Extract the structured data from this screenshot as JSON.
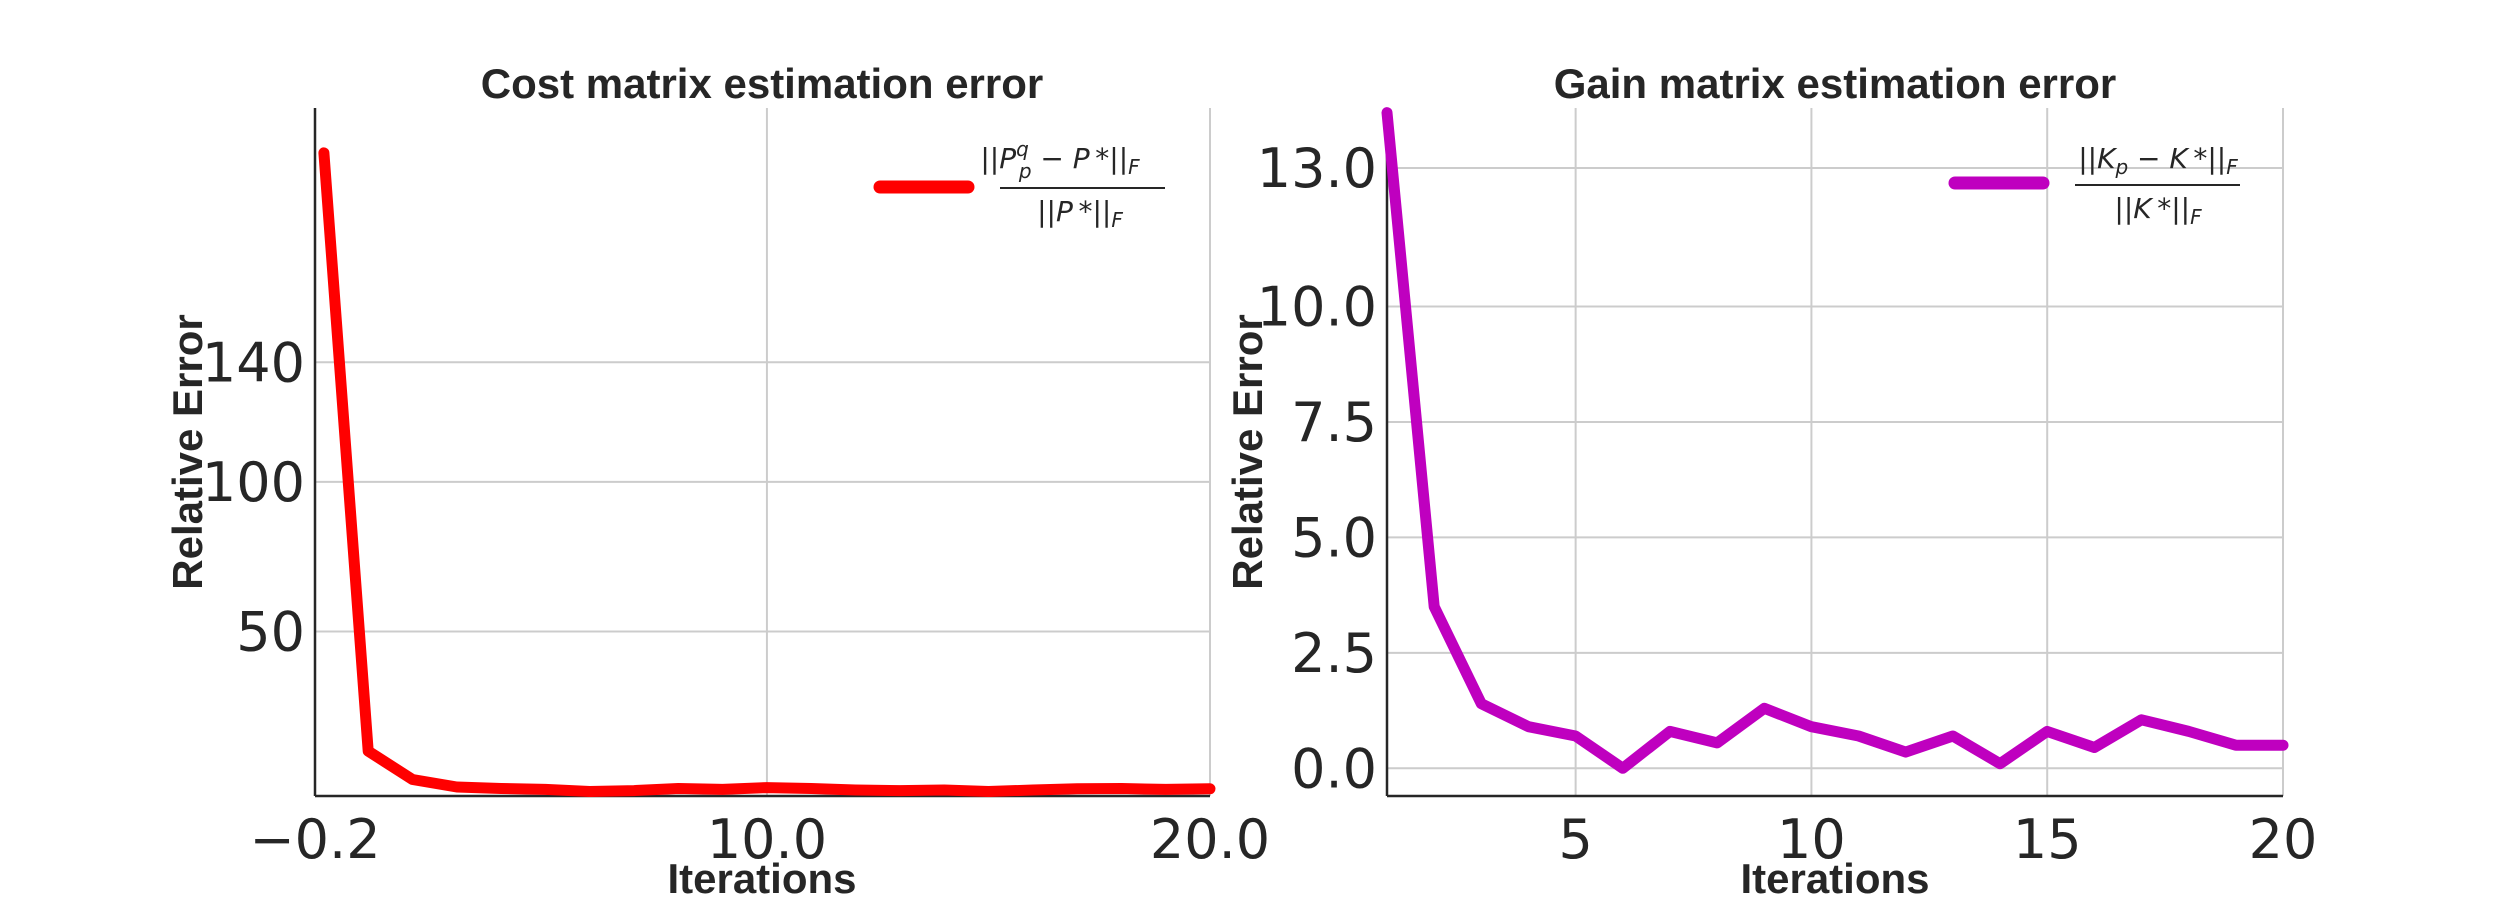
{
  "chart_data": [
    {
      "type": "line",
      "title": "Cost matrix estimation error",
      "xlabel": "Iterations",
      "ylabel": "Relative Error",
      "xlim": [
        -0.2,
        20.0
      ],
      "ylim": [
        -5,
        225
      ],
      "xticks": [
        -0.2,
        10.0,
        20.0
      ],
      "xtick_labels": [
        "−0.2",
        "10.0",
        "20.0"
      ],
      "yticks": [
        50,
        100,
        140
      ],
      "ytick_labels": [
        "50",
        "100",
        "140"
      ],
      "grid": true,
      "legend_position": "top-right",
      "series": [
        {
          "name": "||P_p^q − P*||_F / ||P*||_F",
          "color": "#ff0000",
          "x": [
            0,
            1,
            2,
            3,
            4,
            5,
            6,
            7,
            8,
            9,
            10,
            11,
            12,
            13,
            14,
            15,
            16,
            17,
            18,
            19,
            20
          ],
          "y": [
            210,
            10,
            0.5,
            -2,
            -2.5,
            -2.8,
            -3.5,
            -3.2,
            -2.5,
            -2.8,
            -2.2,
            -2.5,
            -3,
            -3.2,
            -3,
            -3.5,
            -3,
            -2.6,
            -2.5,
            -2.8,
            -2.6
          ]
        }
      ],
      "legend": {
        "numerator": "||P",
        "sup": "q",
        "sub": "p",
        "rest": " − P *||",
        "sub_f": "F",
        "denominator": "||P *||",
        "den_sub": "F"
      }
    },
    {
      "type": "line",
      "title": "Gain matrix estimation error",
      "xlabel": "Iterations",
      "ylabel": "Relative Error",
      "xlim": [
        1,
        20
      ],
      "ylim": [
        -0.6,
        14.3
      ],
      "xticks": [
        5,
        10,
        15,
        20
      ],
      "xtick_labels": [
        "5",
        "10",
        "15",
        "20"
      ],
      "yticks": [
        0.0,
        2.5,
        5.0,
        7.5,
        10.0,
        13.0
      ],
      "ytick_labels": [
        "0.0",
        "2.5",
        "5.0",
        "7.5",
        "10.0",
        "13.0"
      ],
      "grid": true,
      "legend_position": "top-right",
      "series": [
        {
          "name": "||K_p − K*||_F / ||K*||_F",
          "color": "#bf00bf",
          "x": [
            1,
            2,
            3,
            4,
            5,
            6,
            7,
            8,
            9,
            10,
            11,
            12,
            13,
            14,
            15,
            16,
            17,
            18,
            19,
            20
          ],
          "y": [
            14.2,
            3.5,
            1.4,
            0.9,
            0.7,
            0.0,
            0.8,
            0.55,
            1.3,
            0.9,
            0.7,
            0.35,
            0.7,
            0.1,
            0.8,
            0.45,
            1.05,
            0.8,
            0.5,
            0.5
          ]
        }
      ],
      "legend": {
        "numerator": "||K",
        "sub": "p",
        "rest": " − K *||",
        "sub_f": "F",
        "denominator": "||K *||",
        "den_sub": "F"
      }
    }
  ]
}
